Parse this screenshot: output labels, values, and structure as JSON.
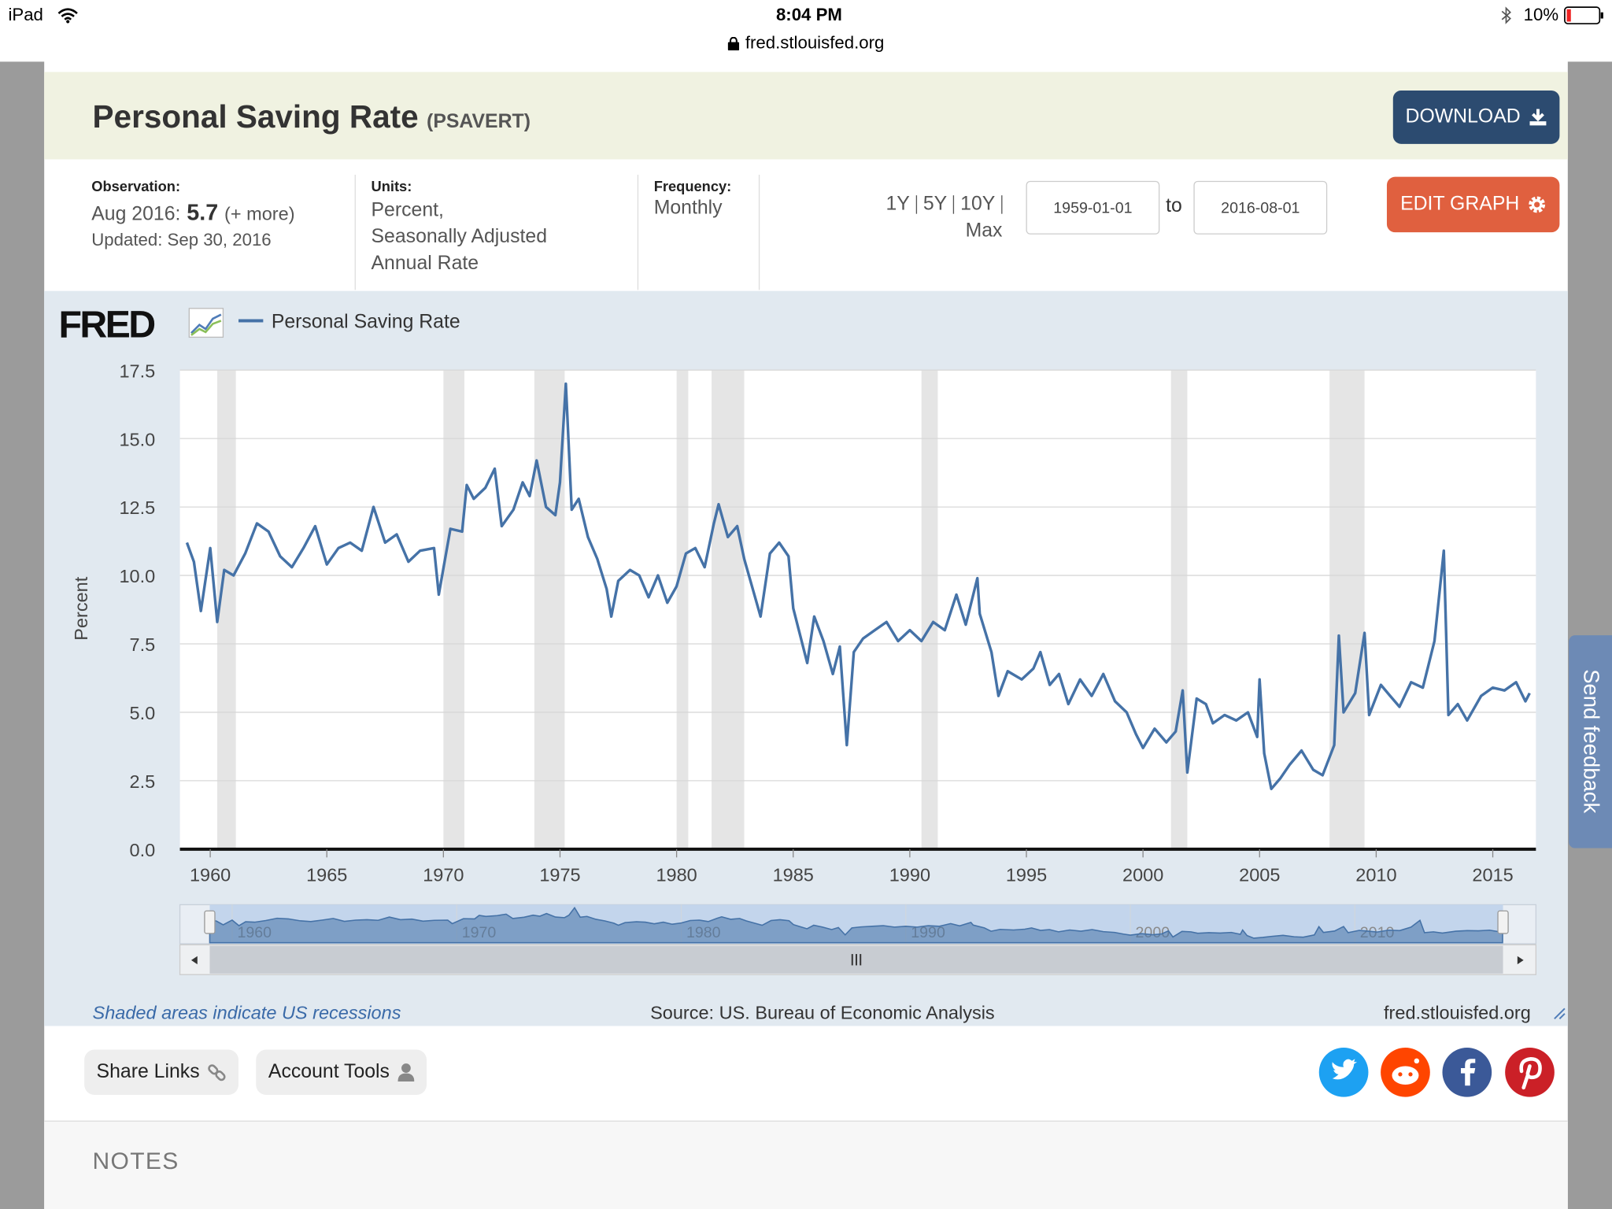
{
  "status_bar": {
    "device": "iPad",
    "time": "8:04 PM",
    "url": "fred.stlouisfed.org",
    "battery": "10%"
  },
  "header": {
    "title": "Personal Saving Rate",
    "series_id": "(PSAVERT)",
    "download": "DOWNLOAD"
  },
  "meta": {
    "observation_label": "Observation:",
    "observation_period": "Aug 2016:",
    "observation_value": "5.7",
    "observation_more": "(+ more)",
    "updated": "Updated: Sep 30, 2016",
    "units_label": "Units:",
    "units": [
      "Percent,",
      "Seasonally Adjusted",
      "Annual Rate"
    ],
    "frequency_label": "Frequency:",
    "frequency": "Monthly",
    "ranges": [
      "1Y",
      "5Y",
      "10Y",
      "Max"
    ],
    "date_from": "1959-01-01",
    "date_to_label": "to",
    "date_to": "2016-08-01",
    "edit_graph": "EDIT GRAPH"
  },
  "chart_data": {
    "type": "line",
    "logo": "FRED",
    "y_label": "Percent",
    "xlim": [
      1958.7,
      2016.85
    ],
    "xticks": [
      1960,
      1965,
      1970,
      1975,
      1980,
      1985,
      1990,
      1995,
      2000,
      2005,
      2010,
      2015
    ],
    "ylim": [
      0,
      17.5
    ],
    "yticks": [
      {
        "value": 0,
        "label": "0.0"
      },
      2.5,
      {
        "value": 5,
        "label": "5.0"
      },
      7.5,
      {
        "value": 10,
        "label": "10.0"
      },
      12.5,
      {
        "value": 15,
        "label": "15.0"
      },
      17.5
    ],
    "grid": true,
    "recession_color": "#e5e5e5",
    "recessions": [
      [
        1960.3,
        1961.1
      ],
      [
        1970.0,
        1970.9
      ],
      [
        1973.9,
        1975.2
      ],
      [
        1980.0,
        1980.5
      ],
      [
        1981.5,
        1982.9
      ],
      [
        1990.5,
        1991.2
      ],
      [
        2001.2,
        2001.9
      ],
      [
        2008.0,
        2009.5
      ]
    ],
    "x": [
      1959.0,
      1959.3,
      1959.6,
      1960.0,
      1960.3,
      1960.6,
      1961.0,
      1961.5,
      1962.0,
      1962.5,
      1963.0,
      1963.5,
      1964.0,
      1964.5,
      1965.0,
      1965.5,
      1966.0,
      1966.5,
      1967.0,
      1967.5,
      1968.0,
      1968.5,
      1969.0,
      1969.6,
      1969.8,
      1970.3,
      1970.8,
      1971.0,
      1971.3,
      1971.8,
      1972.2,
      1972.5,
      1973.0,
      1973.4,
      1973.7,
      1974.0,
      1974.4,
      1974.8,
      1975.0,
      1975.25,
      1975.5,
      1975.8,
      1976.2,
      1976.6,
      1977.0,
      1977.2,
      1977.5,
      1978.0,
      1978.4,
      1978.8,
      1979.2,
      1979.6,
      1980.0,
      1980.4,
      1980.8,
      1981.2,
      1981.6,
      1981.8,
      1982.2,
      1982.6,
      1982.9,
      1983.3,
      1983.6,
      1984.0,
      1984.4,
      1984.8,
      1985.0,
      1985.3,
      1985.6,
      1985.9,
      1986.3,
      1986.7,
      1987.0,
      1987.3,
      1987.6,
      1988.0,
      1988.5,
      1989.0,
      1989.5,
      1990.0,
      1990.5,
      1991.0,
      1991.5,
      1992.0,
      1992.4,
      1992.9,
      1993.0,
      1993.5,
      1993.8,
      1994.2,
      1994.8,
      1995.3,
      1995.6,
      1996.0,
      1996.4,
      1996.8,
      1997.3,
      1997.8,
      1998.3,
      1998.8,
      1999.3,
      1999.7,
      2000.0,
      2000.5,
      2001.0,
      2001.4,
      2001.7,
      2001.9,
      2002.3,
      2002.7,
      2003.0,
      2003.5,
      2004.0,
      2004.5,
      2004.9,
      2005.0,
      2005.2,
      2005.5,
      2005.9,
      2006.3,
      2006.8,
      2007.3,
      2007.7,
      2008.2,
      2008.4,
      2008.6,
      2009.1,
      2009.5,
      2009.7,
      2010.2,
      2010.6,
      2011.0,
      2011.5,
      2012.0,
      2012.5,
      2012.9,
      2013.1,
      2013.5,
      2013.9,
      2014.5,
      2015.0,
      2015.5,
      2016.0,
      2016.4,
      2016.58
    ],
    "series": [
      {
        "name": "Personal Saving Rate",
        "color": "#4572a7",
        "values": [
          11.2,
          10.5,
          8.7,
          11.0,
          8.3,
          10.2,
          10.0,
          10.8,
          11.9,
          11.6,
          10.7,
          10.3,
          11.0,
          11.8,
          10.4,
          11.0,
          11.2,
          10.9,
          12.5,
          11.2,
          11.5,
          10.5,
          10.9,
          11.0,
          9.3,
          11.7,
          11.6,
          13.3,
          12.8,
          13.2,
          13.9,
          11.8,
          12.4,
          13.4,
          12.9,
          14.2,
          12.5,
          12.2,
          13.4,
          17.0,
          12.4,
          12.8,
          11.4,
          10.6,
          9.5,
          8.5,
          9.8,
          10.2,
          10.0,
          9.2,
          10.0,
          9.0,
          9.6,
          10.8,
          11.0,
          10.3,
          11.9,
          12.6,
          11.4,
          11.8,
          10.6,
          9.4,
          8.5,
          10.8,
          11.2,
          10.7,
          8.8,
          7.8,
          6.8,
          8.5,
          7.6,
          6.4,
          7.4,
          3.8,
          7.2,
          7.7,
          8.0,
          8.3,
          7.6,
          8.0,
          7.6,
          8.3,
          8.0,
          9.3,
          8.2,
          9.9,
          8.6,
          7.2,
          5.6,
          6.5,
          6.2,
          6.6,
          7.2,
          6.0,
          6.4,
          5.3,
          6.2,
          5.6,
          6.4,
          5.4,
          5.0,
          4.2,
          3.7,
          4.4,
          3.9,
          4.3,
          5.8,
          2.8,
          5.5,
          5.3,
          4.6,
          4.9,
          4.7,
          5.0,
          4.1,
          6.2,
          3.5,
          2.2,
          2.6,
          3.1,
          3.6,
          2.9,
          2.7,
          3.8,
          7.8,
          5.0,
          5.7,
          7.9,
          4.9,
          6.0,
          5.6,
          5.2,
          6.1,
          5.9,
          7.6,
          10.9,
          4.9,
          5.3,
          4.7,
          5.6,
          5.9,
          5.8,
          6.1,
          5.4,
          5.7
        ]
      }
    ],
    "navigator": {
      "xlim": [
        1959.0,
        2016.6
      ],
      "xticks": [
        1960,
        1970,
        1980,
        1990,
        2000,
        2010
      ]
    },
    "recession_note": "Shaded areas indicate US recessions",
    "source": "Source: US. Bureau of Economic Analysis",
    "site": "fred.stlouisfed.org"
  },
  "toolbar": {
    "share_links": "Share Links",
    "account_tools": "Account Tools"
  },
  "feedback": "Send feedback",
  "notes": {
    "title": "NOTES"
  }
}
